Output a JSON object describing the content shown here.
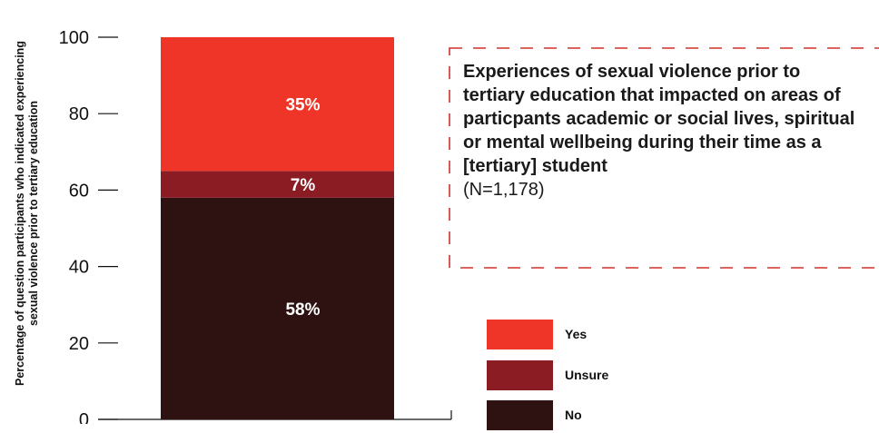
{
  "chart_data": {
    "type": "bar",
    "stacked": true,
    "categories": [
      ""
    ],
    "series": [
      {
        "name": "No",
        "values": [
          58
        ],
        "color": "#2e1212",
        "label": "58%"
      },
      {
        "name": "Unsure",
        "values": [
          7
        ],
        "color": "#8b1c24",
        "label": "7%"
      },
      {
        "name": "Yes",
        "values": [
          35
        ],
        "color": "#ee3527",
        "label": "35%"
      }
    ],
    "ylabel_lines": [
      "Percentage of question participants who indicated experiencing",
      "sexual violence prior to tertiary education"
    ],
    "xlabel": "",
    "ylim": [
      0,
      100
    ],
    "yticks": [
      0,
      20,
      40,
      60,
      80,
      100
    ],
    "grid": false,
    "legend_position": "bottom-right",
    "legend_order": [
      "Yes",
      "Unsure",
      "No"
    ]
  },
  "annotation": {
    "title": "Experiences of sexual violence prior to tertiary education that impacted on areas of particpants academic or social lives, spiritual or mental wellbeing during their time as a [tertiary] student",
    "note": "(N=1,178)",
    "border_color": "#d0302a"
  }
}
